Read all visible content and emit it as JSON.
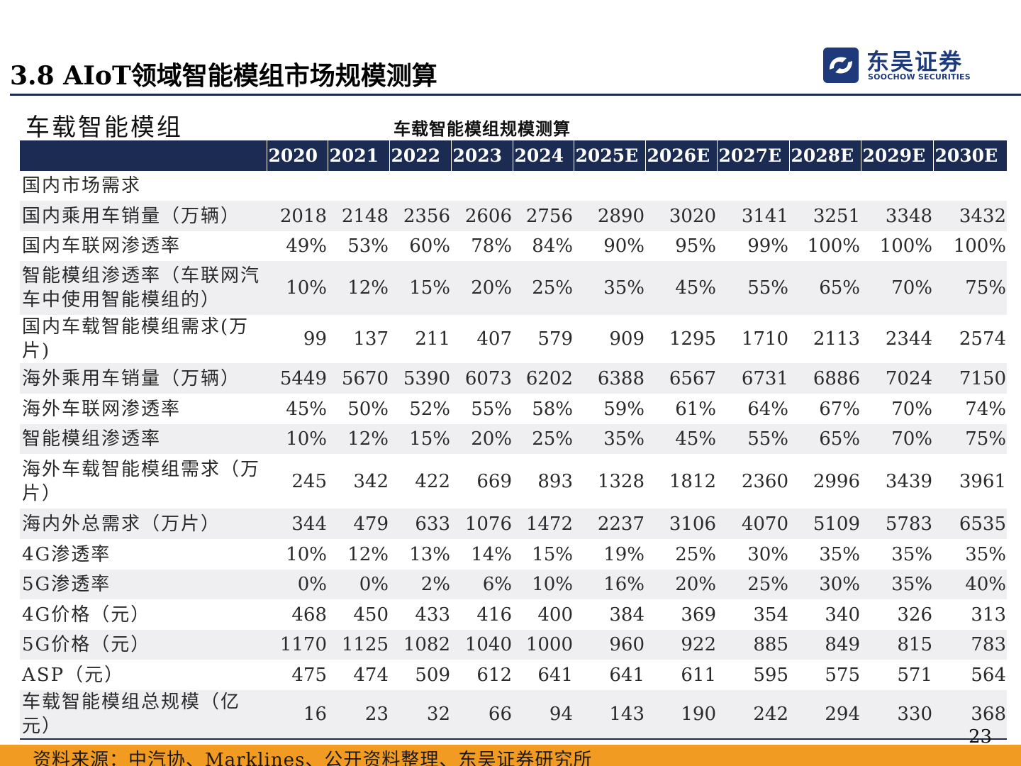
{
  "title": "3.8 AIoT领域智能模组市场规模测算",
  "logo": {
    "name_cn": "东吴证券",
    "name_en": "SOOCHOW SECURITIES",
    "color": "#1e3a7a"
  },
  "section_label": "车载智能模组",
  "table": {
    "caption": "车载智能模组规模测算",
    "columns": [
      "",
      "2020",
      "2021",
      "2022",
      "2023",
      "2024",
      "2025E",
      "2026E",
      "2027E",
      "2028E",
      "2029E",
      "2030E"
    ],
    "rows": [
      {
        "label": "国内市场需求",
        "values": [
          "",
          "",
          "",
          "",
          "",
          "",
          "",
          "",
          "",
          "",
          ""
        ]
      },
      {
        "label": "国内乘用车销量（万辆）",
        "values": [
          "2018",
          "2148",
          "2356",
          "2606",
          "2756",
          "2890",
          "3020",
          "3141",
          "3251",
          "3348",
          "3432"
        ]
      },
      {
        "label": "国内车联网渗透率",
        "values": [
          "49%",
          "53%",
          "60%",
          "78%",
          "84%",
          "90%",
          "95%",
          "99%",
          "100%",
          "100%",
          "100%"
        ]
      },
      {
        "label": "智能模组渗透率（车联网汽车中使用智能模组的）",
        "values": [
          "10%",
          "12%",
          "15%",
          "20%",
          "25%",
          "35%",
          "45%",
          "55%",
          "65%",
          "70%",
          "75%"
        ]
      },
      {
        "label": "国内车载智能模组需求(万片)",
        "values": [
          "99",
          "137",
          "211",
          "407",
          "579",
          "909",
          "1295",
          "1710",
          "2113",
          "2344",
          "2574"
        ]
      },
      {
        "label": "海外乘用车销量（万辆）",
        "values": [
          "5449",
          "5670",
          "5390",
          "6073",
          "6202",
          "6388",
          "6567",
          "6731",
          "6886",
          "7024",
          "7150"
        ]
      },
      {
        "label": "海外车联网渗透率",
        "values": [
          "45%",
          "50%",
          "52%",
          "55%",
          "58%",
          "59%",
          "61%",
          "64%",
          "67%",
          "70%",
          "74%"
        ]
      },
      {
        "label": "智能模组渗透率",
        "values": [
          "10%",
          "12%",
          "15%",
          "20%",
          "25%",
          "35%",
          "45%",
          "55%",
          "65%",
          "70%",
          "75%"
        ]
      },
      {
        "label": "海外车载智能模组需求（万片）",
        "values": [
          "245",
          "342",
          "422",
          "669",
          "893",
          "1328",
          "1812",
          "2360",
          "2996",
          "3439",
          "3961"
        ]
      },
      {
        "label": "海内外总需求（万片）",
        "values": [
          "344",
          "479",
          "633",
          "1076",
          "1472",
          "2237",
          "3106",
          "4070",
          "5109",
          "5783",
          "6535"
        ]
      },
      {
        "label": "4G渗透率",
        "values": [
          "10%",
          "12%",
          "13%",
          "14%",
          "15%",
          "19%",
          "25%",
          "30%",
          "35%",
          "35%",
          "35%"
        ]
      },
      {
        "label": "5G渗透率",
        "values": [
          "0%",
          "0%",
          "2%",
          "6%",
          "10%",
          "16%",
          "20%",
          "25%",
          "30%",
          "35%",
          "40%"
        ]
      },
      {
        "label": "4G价格（元）",
        "values": [
          "468",
          "450",
          "433",
          "416",
          "400",
          "384",
          "369",
          "354",
          "340",
          "326",
          "313"
        ]
      },
      {
        "label": "5G价格（元）",
        "values": [
          "1170",
          "1125",
          "1082",
          "1040",
          "1000",
          "960",
          "922",
          "885",
          "849",
          "815",
          "783"
        ]
      },
      {
        "label": "ASP（元）",
        "values": [
          "475",
          "474",
          "509",
          "612",
          "641",
          "641",
          "611",
          "595",
          "575",
          "571",
          "564"
        ]
      },
      {
        "label": "车载智能模组总规模（亿元）",
        "values": [
          "16",
          "23",
          "32",
          "66",
          "94",
          "143",
          "190",
          "242",
          "294",
          "330",
          "368"
        ]
      }
    ]
  },
  "page_number": "23",
  "source": "资料来源：中汽协、Marklines、公开资料整理、东吴证券研究所",
  "colors": {
    "header_bg": "#1b2b52",
    "row_shade": "#efeff1",
    "footer_bar": "#f29b22"
  }
}
